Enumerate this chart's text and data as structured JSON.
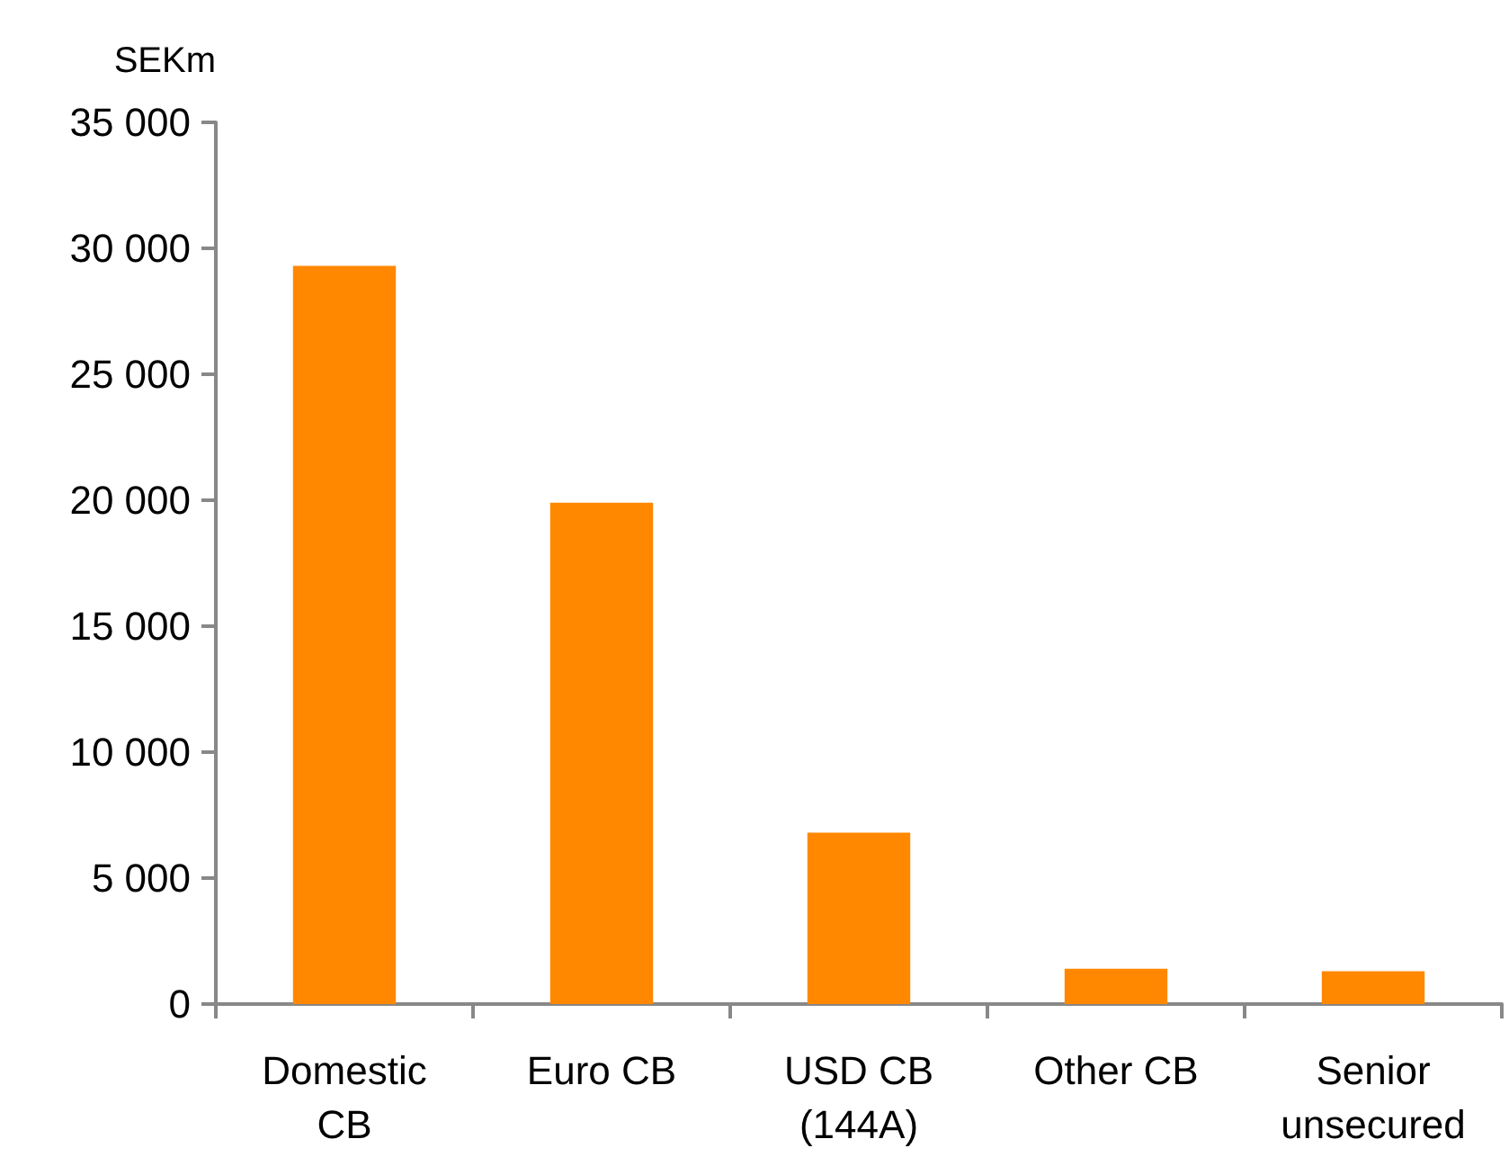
{
  "chart_data": {
    "type": "bar",
    "ylabel": "SEKm",
    "categories": [
      "Domestic\nCB",
      "Euro CB",
      "USD CB\n(144A)",
      "Other CB",
      "Senior\nunsecured"
    ],
    "values": [
      29300,
      19900,
      6800,
      1400,
      1300
    ],
    "color": "#ff8800",
    "ylim": [
      0,
      35000
    ],
    "yticks": [
      {
        "value": 0,
        "label": "0"
      },
      {
        "value": 5000,
        "label": "5 000"
      },
      {
        "value": 10000,
        "label": "10 000"
      },
      {
        "value": 15000,
        "label": "15 000"
      },
      {
        "value": 20000,
        "label": "20 000"
      },
      {
        "value": 25000,
        "label": "25 000"
      },
      {
        "value": 30000,
        "label": "30 000"
      },
      {
        "value": 35000,
        "label": "35 000"
      }
    ],
    "grid": false
  }
}
